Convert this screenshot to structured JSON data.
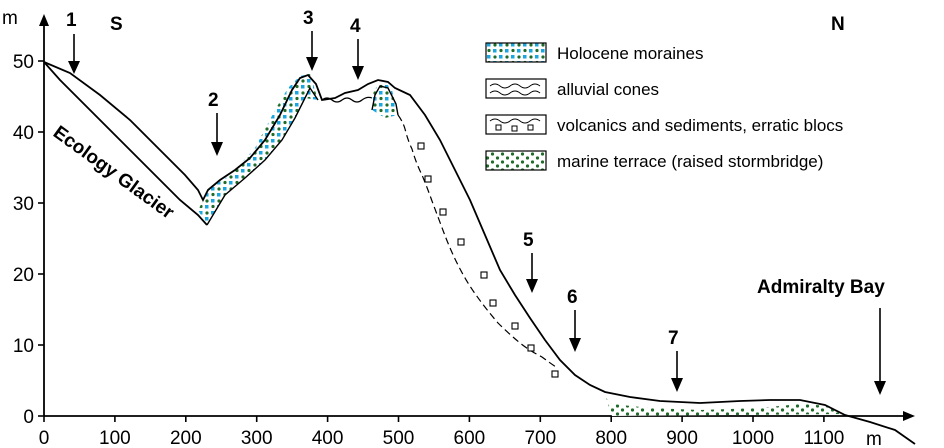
{
  "figure": {
    "axis_unit_x": "m",
    "axis_unit_y": "m",
    "y_ticks": [
      0,
      10,
      20,
      30,
      40,
      50
    ],
    "x_ticks": [
      0,
      100,
      200,
      300,
      400,
      500,
      600,
      700,
      800,
      900,
      1000,
      1100
    ],
    "direction_left": "S",
    "direction_right": "N",
    "glacier_label": "Ecology Glacier",
    "bay_label": "Admiralty Bay",
    "markers": [
      {
        "label": "1"
      },
      {
        "label": "2"
      },
      {
        "label": "3"
      },
      {
        "label": "4"
      },
      {
        "label": "5"
      },
      {
        "label": "6"
      },
      {
        "label": "7"
      }
    ]
  },
  "legend": {
    "items": [
      {
        "label": "Holocene moraines",
        "pattern": "moraine"
      },
      {
        "label": "alluvial cones",
        "pattern": "alluvial"
      },
      {
        "label": "volcanics and sediments, erratic blocs",
        "pattern": "volcanic"
      },
      {
        "label": "marine terrace (raised stormbridge)",
        "pattern": "terrace"
      }
    ]
  },
  "colors": {
    "moraine_blue": "#1aa7e0",
    "terrace_green": "#1f6b2a",
    "ink": "#000000"
  }
}
